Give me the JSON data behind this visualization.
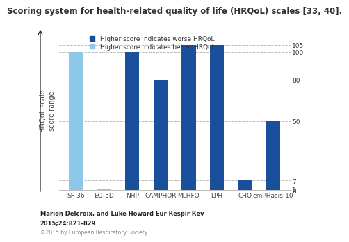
{
  "title": "Scoring system for health-related quality of life (HRQoL) scales [33, 40].",
  "categories": [
    "SF-36",
    "EQ-5D",
    "NHP",
    "CAMPHOR",
    "MLHFQ",
    "LPH",
    "CHQ",
    "emPHasis-10"
  ],
  "values": [
    100,
    1,
    100,
    80,
    105,
    105,
    7,
    50
  ],
  "colors": [
    "#8ec8e8",
    "#8ec8e8",
    "#1a4f9c",
    "#1a4f9c",
    "#1a4f9c",
    "#1a4f9c",
    "#1a4f9c",
    "#1a4f9c"
  ],
  "ylabel": "HRQoL scale\nscore range",
  "right_positions": [
    105,
    100,
    80,
    50,
    7,
    1,
    0
  ],
  "right_labels": [
    "105",
    "100",
    "80",
    "50",
    "7",
    "1",
    "0"
  ],
  "legend_worse_color": "#1a4f9c",
  "legend_better_color": "#8ec8e8",
  "legend_worse_label": "Higher score indicates worse HRQoL",
  "legend_better_label": "Higher score indicates better HRQoL",
  "footnote_line1": "Marion Delcroix, and Luke Howard Eur Respir Rev",
  "footnote_line2": "2015;24:821-829",
  "copyright": "©2015 by European Respiratory Society",
  "ylim": [
    0,
    115
  ],
  "background_color": "#ffffff",
  "title_fontsize": 8.5,
  "axis_label_fontsize": 7,
  "tick_fontsize": 6.5,
  "legend_fontsize": 6.5,
  "footnote_fontsize": 6,
  "copyright_fontsize": 5.5
}
